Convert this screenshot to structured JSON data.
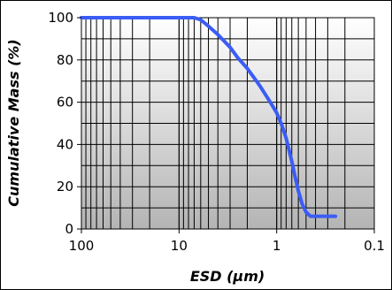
{
  "chart_data": {
    "type": "line",
    "title": "",
    "xlabel": "ESD (µm)",
    "ylabel": "Cumulative Mass (%)",
    "x_scale": "log",
    "x_reversed": true,
    "xlim": [
      100,
      0.1
    ],
    "ylim": [
      0,
      100
    ],
    "x_ticks": [
      100,
      10,
      1,
      0.1
    ],
    "x_tick_labels": [
      "100",
      "10",
      "1",
      "0.1"
    ],
    "y_ticks": [
      0,
      20,
      40,
      60,
      80,
      100
    ],
    "y_tick_labels": [
      "0",
      "20",
      "40",
      "60",
      "80",
      "100"
    ],
    "grid": true,
    "legend": "none",
    "series": [
      {
        "color": "#3b5cf5",
        "x": [
          100,
          50,
          20,
          10,
          7,
          6,
          5,
          4,
          3,
          2.5,
          2,
          1.5,
          1.2,
          1,
          0.9,
          0.8,
          0.7,
          0.65,
          0.6,
          0.55,
          0.5,
          0.45,
          0.4,
          0.35,
          0.3,
          0.25
        ],
        "y": [
          100,
          100,
          100,
          100,
          100,
          99,
          96,
          92,
          86,
          81,
          76,
          68,
          61,
          55,
          50,
          43,
          32,
          25,
          18,
          12,
          8,
          6,
          6,
          6,
          6,
          6
        ]
      }
    ]
  }
}
